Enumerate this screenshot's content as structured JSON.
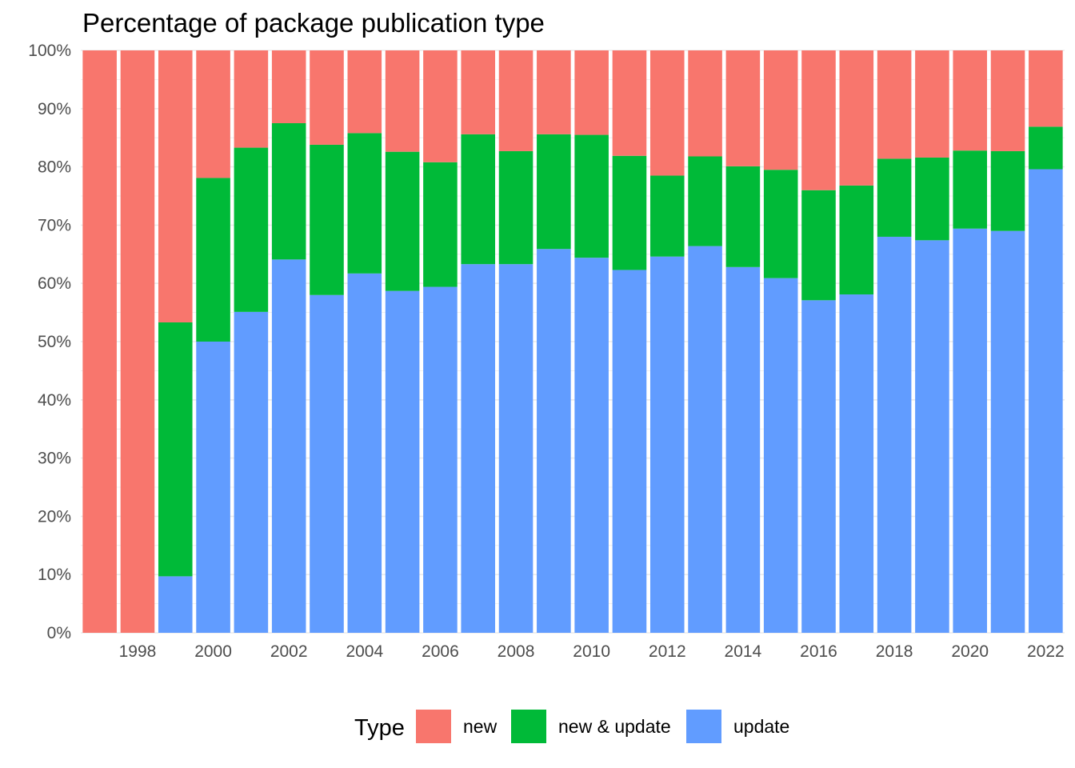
{
  "chart_data": {
    "type": "bar",
    "stacked": "percent",
    "title": "Percentage of package publication type",
    "xlabel": "",
    "ylabel": "",
    "ylim": [
      0,
      100
    ],
    "y_ticks": [
      "0%",
      "10%",
      "20%",
      "30%",
      "40%",
      "50%",
      "60%",
      "70%",
      "80%",
      "90%",
      "100%"
    ],
    "x_tick_labels": [
      "1998",
      "2000",
      "2002",
      "2004",
      "2006",
      "2008",
      "2010",
      "2012",
      "2014",
      "2016",
      "2018",
      "2020",
      "2022"
    ],
    "categories": [
      1997,
      1998,
      1999,
      2000,
      2001,
      2002,
      2003,
      2004,
      2005,
      2006,
      2007,
      2008,
      2009,
      2010,
      2011,
      2012,
      2013,
      2014,
      2015,
      2016,
      2017,
      2018,
      2019,
      2020,
      2021,
      2022
    ],
    "grid": "horizontal",
    "legend": {
      "title": "Type",
      "position": "bottom"
    },
    "series": [
      {
        "name": "update",
        "color": "#619CFF",
        "values": [
          0,
          0,
          9.7,
          50.0,
          55.1,
          64.1,
          58.0,
          61.7,
          58.7,
          59.4,
          63.3,
          63.3,
          65.9,
          64.4,
          62.3,
          64.6,
          66.4,
          62.8,
          60.9,
          57.1,
          58.1,
          68.0,
          67.4,
          69.4,
          69.0,
          79.6
        ]
      },
      {
        "name": "new & update",
        "color": "#00BA38",
        "values": [
          0,
          0,
          43.6,
          28.1,
          28.2,
          23.4,
          25.8,
          24.1,
          23.9,
          21.4,
          22.3,
          19.4,
          19.7,
          21.1,
          19.6,
          13.9,
          15.4,
          17.3,
          18.6,
          18.9,
          18.7,
          13.4,
          14.2,
          13.4,
          13.7,
          7.3
        ]
      },
      {
        "name": "new",
        "color": "#F8766D",
        "values": [
          100,
          100,
          46.7,
          21.9,
          16.7,
          12.5,
          16.2,
          14.2,
          17.4,
          19.2,
          14.4,
          17.3,
          14.4,
          14.5,
          18.1,
          21.5,
          18.2,
          19.9,
          20.5,
          24.0,
          23.2,
          18.6,
          18.4,
          17.2,
          17.3,
          13.1
        ]
      }
    ]
  }
}
